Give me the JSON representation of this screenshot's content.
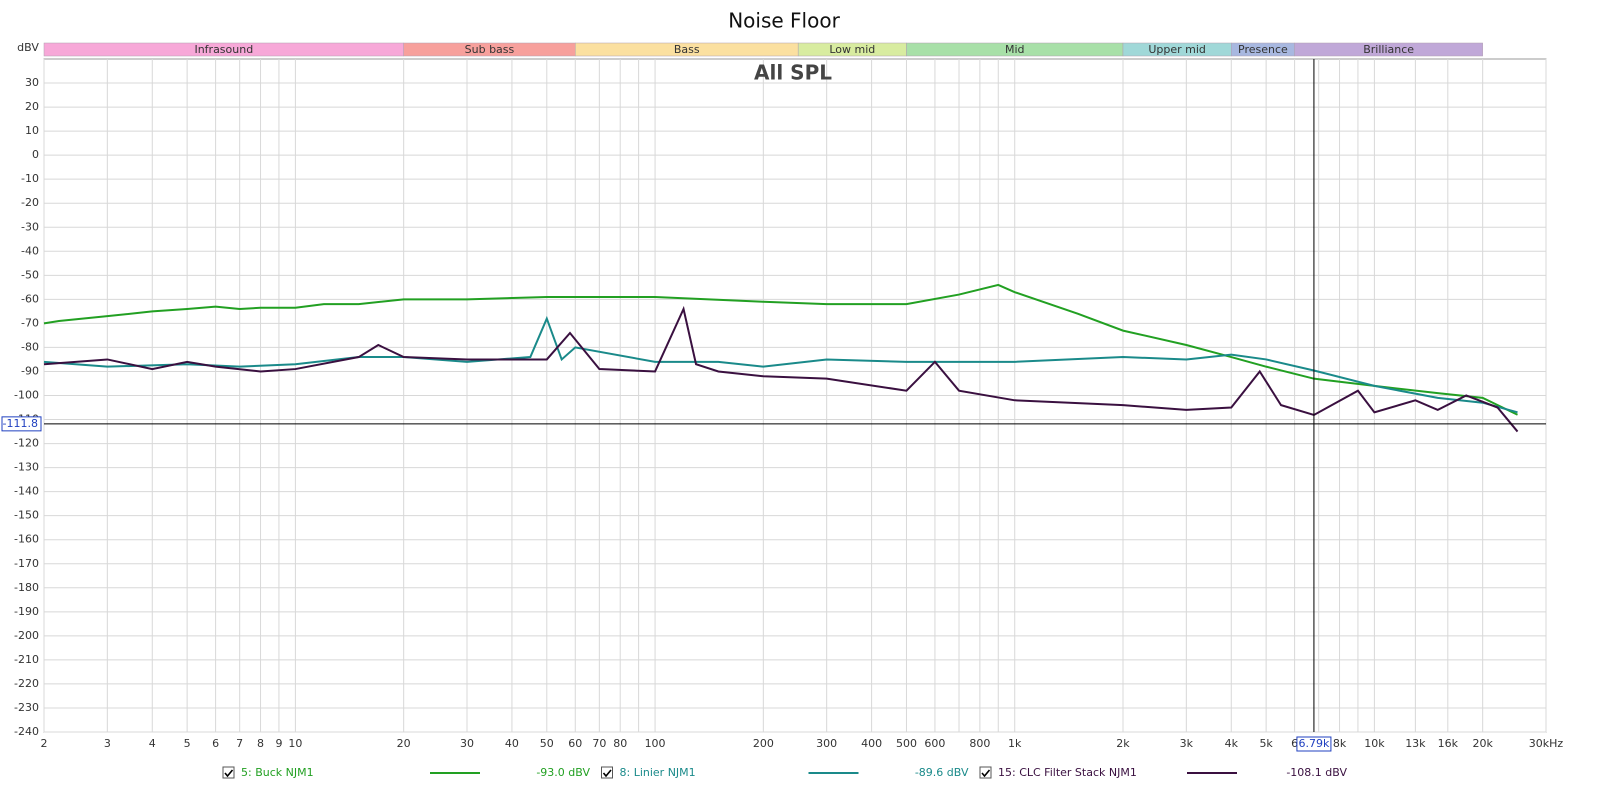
{
  "chart_data": {
    "type": "line",
    "title": "Noise Floor",
    "subtitle": "All SPL",
    "y_label": "dBV",
    "xscale": "log",
    "grid": true,
    "xlim": [
      2,
      30000
    ],
    "ylim": [
      -240,
      40
    ],
    "yticks": [
      30,
      20,
      10,
      0,
      -10,
      -20,
      -30,
      -40,
      -50,
      -60,
      -70,
      -80,
      -90,
      -100,
      -110,
      -120,
      -130,
      -140,
      -150,
      -160,
      -170,
      -180,
      -190,
      -200,
      -210,
      -220,
      -230,
      -240
    ],
    "xticks": [
      2,
      3,
      4,
      5,
      6,
      7,
      8,
      9,
      10,
      20,
      30,
      40,
      50,
      60,
      70,
      80,
      100,
      200,
      300,
      400,
      500,
      600,
      800,
      {
        "value": 1000,
        "label": "1k"
      },
      {
        "value": 2000,
        "label": "2k"
      },
      {
        "value": 3000,
        "label": "3k"
      },
      {
        "value": 4000,
        "label": "4k"
      },
      {
        "value": 5000,
        "label": "5k"
      },
      {
        "value": 6000,
        "label": "6"
      },
      {
        "value": 8000,
        "label": "8k"
      },
      {
        "value": 10000,
        "label": "10k"
      },
      {
        "value": 13000,
        "label": "13k"
      },
      {
        "value": 16000,
        "label": "16k"
      },
      {
        "value": 20000,
        "label": "20k"
      },
      {
        "value": 30000,
        "label": "30kHz"
      }
    ],
    "xminor": [
      90,
      700,
      900,
      7000,
      9000
    ],
    "bands": [
      {
        "name": "Infrasound",
        "from": 2,
        "to": 20,
        "color": "#f7a8d8"
      },
      {
        "name": "Sub bass",
        "from": 20,
        "to": 60,
        "color": "#f7a09c"
      },
      {
        "name": "Bass",
        "from": 60,
        "to": 250,
        "color": "#fbe0a0"
      },
      {
        "name": "Low mid",
        "from": 250,
        "to": 500,
        "color": "#d8eca0"
      },
      {
        "name": "Mid",
        "from": 500,
        "to": 2000,
        "color": "#a8e0a8"
      },
      {
        "name": "Upper mid",
        "from": 2000,
        "to": 4000,
        "color": "#a0d8d8"
      },
      {
        "name": "Presence",
        "from": 4000,
        "to": 6000,
        "color": "#a8b8e0"
      },
      {
        "name": "Brilliance",
        "from": 6000,
        "to": 20000,
        "color": "#c0a8d8"
      }
    ],
    "cursor": {
      "x": {
        "value": 6790,
        "label": "6.79k"
      },
      "y": -111.8
    },
    "series": [
      {
        "name": "5: Buck NJM1",
        "color": "#22a022",
        "readout": "-93.0 dBV",
        "x": [
          2,
          2.2,
          3,
          4,
          5,
          6,
          7,
          8,
          10,
          12,
          15,
          20,
          30,
          50,
          100,
          200,
          300,
          500,
          700,
          900,
          1000,
          1500,
          2000,
          3000,
          4000,
          5000,
          6790,
          10000,
          15000,
          20000,
          25000
        ],
        "values": [
          -70,
          -69,
          -67,
          -65,
          -64,
          -63,
          -64,
          -63.5,
          -63.5,
          -62,
          -62,
          -60,
          -60,
          -59,
          -59,
          -61,
          -62,
          -62,
          -58,
          -54,
          -57,
          -66,
          -73,
          -79,
          -84,
          -88,
          -93,
          -96,
          -99,
          -101,
          -108
        ]
      },
      {
        "name": "8: Linier NJM1",
        "color": "#1a8a8a",
        "readout": "-89.6 dBV",
        "x": [
          2,
          3,
          5,
          7,
          10,
          15,
          20,
          30,
          45,
          50,
          55,
          60,
          100,
          120,
          150,
          200,
          300,
          500,
          1000,
          2000,
          3000,
          4000,
          5000,
          6790,
          10000,
          15000,
          20000,
          25000
        ],
        "values": [
          -86,
          -88,
          -87,
          -88,
          -87,
          -84,
          -84,
          -86,
          -84,
          -68,
          -85,
          -80,
          -86,
          -86,
          -86,
          -88,
          -85,
          -86,
          -86,
          -84,
          -85,
          -83,
          -85,
          -89.6,
          -96,
          -101,
          -103,
          -107
        ]
      },
      {
        "name": "15: CLC Filter Stack NJM1",
        "color": "#3a1040",
        "readout": "-108.1 dBV",
        "x": [
          2,
          3,
          4,
          5,
          6,
          8,
          10,
          15,
          17,
          20,
          30,
          50,
          58,
          70,
          100,
          120,
          130,
          150,
          200,
          300,
          500,
          600,
          700,
          1000,
          2000,
          3000,
          4000,
          4800,
          5500,
          6790,
          9000,
          10000,
          13000,
          15000,
          18000,
          22000,
          25000
        ],
        "values": [
          -87,
          -85,
          -89,
          -86,
          -88,
          -90,
          -89,
          -84,
          -79,
          -84,
          -85,
          -85,
          -74,
          -89,
          -90,
          -64,
          -87,
          -90,
          -92,
          -93,
          -98,
          -86,
          -98,
          -102,
          -104,
          -106,
          -105,
          -90,
          -104,
          -108.1,
          -98,
          -107,
          -102,
          -106,
          -100,
          -105,
          -115
        ]
      }
    ]
  }
}
